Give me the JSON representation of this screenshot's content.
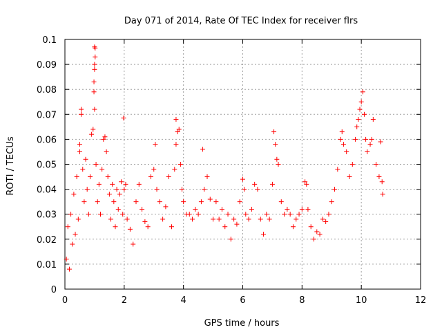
{
  "chart_data": {
    "type": "scatter",
    "title": "Day 071 of 2014, Rate Of TEC Index for receiver flrs",
    "xlabel": "GPS time / hours",
    "ylabel": "ROTI / TECUs",
    "xlim": [
      0,
      12
    ],
    "ylim": [
      0,
      0.1
    ],
    "xticks": [
      0,
      2,
      4,
      6,
      8,
      10,
      12
    ],
    "xtick_labels": [
      "0",
      "2",
      "4",
      "6",
      "8",
      "10",
      "12"
    ],
    "yticks": [
      0,
      0.01,
      0.02,
      0.03,
      0.04,
      0.05,
      0.06,
      0.07,
      0.08,
      0.09,
      0.1
    ],
    "ytick_labels": [
      "0",
      "0.01",
      "0.02",
      "0.03",
      "0.04",
      "0.05",
      "0.06",
      "0.07",
      "0.08",
      "0.09",
      "0.1"
    ],
    "grid": true,
    "marker": "+",
    "color": "#ff0000",
    "series": [
      {
        "name": "ROTI",
        "points": [
          [
            0.05,
            0.012
          ],
          [
            0.1,
            0.025
          ],
          [
            0.15,
            0.008
          ],
          [
            0.2,
            0.03
          ],
          [
            0.25,
            0.018
          ],
          [
            0.3,
            0.038
          ],
          [
            0.35,
            0.022
          ],
          [
            0.4,
            0.045
          ],
          [
            0.45,
            0.028
          ],
          [
            0.5,
            0.055
          ],
          [
            0.5,
            0.058
          ],
          [
            0.55,
            0.07
          ],
          [
            0.55,
            0.072
          ],
          [
            0.6,
            0.048
          ],
          [
            0.65,
            0.035
          ],
          [
            0.7,
            0.052
          ],
          [
            0.75,
            0.04
          ],
          [
            0.8,
            0.03
          ],
          [
            0.85,
            0.045
          ],
          [
            0.9,
            0.062
          ],
          [
            0.95,
            0.064
          ],
          [
            0.98,
            0.079
          ],
          [
            0.98,
            0.083
          ],
          [
            1.0,
            0.088
          ],
          [
            1.0,
            0.09
          ],
          [
            1.02,
            0.093
          ],
          [
            1.0,
            0.097
          ],
          [
            1.02,
            0.0965
          ],
          [
            1.0,
            0.072
          ],
          [
            1.05,
            0.05
          ],
          [
            1.1,
            0.035
          ],
          [
            1.15,
            0.042
          ],
          [
            1.2,
            0.03
          ],
          [
            1.25,
            0.048
          ],
          [
            1.3,
            0.06
          ],
          [
            1.35,
            0.061
          ],
          [
            1.4,
            0.055
          ],
          [
            1.45,
            0.045
          ],
          [
            1.5,
            0.038
          ],
          [
            1.55,
            0.028
          ],
          [
            1.6,
            0.042
          ],
          [
            1.65,
            0.035
          ],
          [
            1.7,
            0.025
          ],
          [
            1.75,
            0.04
          ],
          [
            1.8,
            0.032
          ],
          [
            1.85,
            0.038
          ],
          [
            1.9,
            0.043
          ],
          [
            1.95,
            0.03
          ],
          [
            1.98,
            0.0685
          ],
          [
            2.0,
            0.04
          ],
          [
            2.05,
            0.042
          ],
          [
            2.1,
            0.028
          ],
          [
            2.2,
            0.024
          ],
          [
            2.3,
            0.018
          ],
          [
            2.4,
            0.035
          ],
          [
            2.5,
            0.042
          ],
          [
            2.6,
            0.032
          ],
          [
            2.7,
            0.027
          ],
          [
            2.8,
            0.025
          ],
          [
            2.9,
            0.045
          ],
          [
            3.0,
            0.048
          ],
          [
            3.05,
            0.058
          ],
          [
            3.1,
            0.04
          ],
          [
            3.2,
            0.035
          ],
          [
            3.3,
            0.028
          ],
          [
            3.4,
            0.033
          ],
          [
            3.5,
            0.045
          ],
          [
            3.6,
            0.025
          ],
          [
            3.7,
            0.048
          ],
          [
            3.75,
            0.058
          ],
          [
            3.75,
            0.068
          ],
          [
            3.8,
            0.063
          ],
          [
            3.85,
            0.064
          ],
          [
            3.9,
            0.05
          ],
          [
            3.95,
            0.04
          ],
          [
            4.0,
            0.035
          ],
          [
            4.1,
            0.03
          ],
          [
            4.2,
            0.03
          ],
          [
            4.3,
            0.028
          ],
          [
            4.4,
            0.032
          ],
          [
            4.5,
            0.03
          ],
          [
            4.6,
            0.035
          ],
          [
            4.65,
            0.056
          ],
          [
            4.7,
            0.04
          ],
          [
            4.8,
            0.045
          ],
          [
            4.9,
            0.036
          ],
          [
            5.0,
            0.028
          ],
          [
            5.1,
            0.035
          ],
          [
            5.2,
            0.028
          ],
          [
            5.3,
            0.032
          ],
          [
            5.4,
            0.025
          ],
          [
            5.5,
            0.03
          ],
          [
            5.6,
            0.02
          ],
          [
            5.7,
            0.028
          ],
          [
            5.8,
            0.026
          ],
          [
            5.9,
            0.035
          ],
          [
            6.0,
            0.044
          ],
          [
            6.05,
            0.04
          ],
          [
            6.1,
            0.03
          ],
          [
            6.2,
            0.028
          ],
          [
            6.3,
            0.032
          ],
          [
            6.4,
            0.042
          ],
          [
            6.5,
            0.04
          ],
          [
            6.6,
            0.028
          ],
          [
            6.7,
            0.022
          ],
          [
            6.8,
            0.03
          ],
          [
            6.9,
            0.028
          ],
          [
            7.0,
            0.042
          ],
          [
            7.05,
            0.063
          ],
          [
            7.1,
            0.058
          ],
          [
            7.15,
            0.052
          ],
          [
            7.2,
            0.05
          ],
          [
            7.3,
            0.035
          ],
          [
            7.4,
            0.03
          ],
          [
            7.5,
            0.032
          ],
          [
            7.6,
            0.03
          ],
          [
            7.7,
            0.025
          ],
          [
            7.8,
            0.028
          ],
          [
            7.9,
            0.03
          ],
          [
            8.0,
            0.032
          ],
          [
            8.1,
            0.043
          ],
          [
            8.15,
            0.042
          ],
          [
            8.2,
            0.032
          ],
          [
            8.3,
            0.025
          ],
          [
            8.4,
            0.02
          ],
          [
            8.5,
            0.023
          ],
          [
            8.6,
            0.022
          ],
          [
            8.7,
            0.028
          ],
          [
            8.8,
            0.027
          ],
          [
            8.9,
            0.03
          ],
          [
            9.0,
            0.035
          ],
          [
            9.1,
            0.04
          ],
          [
            9.2,
            0.048
          ],
          [
            9.3,
            0.06
          ],
          [
            9.35,
            0.063
          ],
          [
            9.4,
            0.058
          ],
          [
            9.5,
            0.055
          ],
          [
            9.6,
            0.045
          ],
          [
            9.7,
            0.05
          ],
          [
            9.8,
            0.06
          ],
          [
            9.85,
            0.065
          ],
          [
            9.9,
            0.068
          ],
          [
            9.95,
            0.072
          ],
          [
            10.0,
            0.075
          ],
          [
            10.05,
            0.079
          ],
          [
            10.1,
            0.07
          ],
          [
            10.15,
            0.06
          ],
          [
            10.2,
            0.055
          ],
          [
            10.3,
            0.058
          ],
          [
            10.35,
            0.06
          ],
          [
            10.4,
            0.068
          ],
          [
            10.5,
            0.05
          ],
          [
            10.6,
            0.045
          ],
          [
            10.65,
            0.059
          ],
          [
            10.7,
            0.043
          ],
          [
            10.72,
            0.038
          ]
        ]
      }
    ]
  }
}
